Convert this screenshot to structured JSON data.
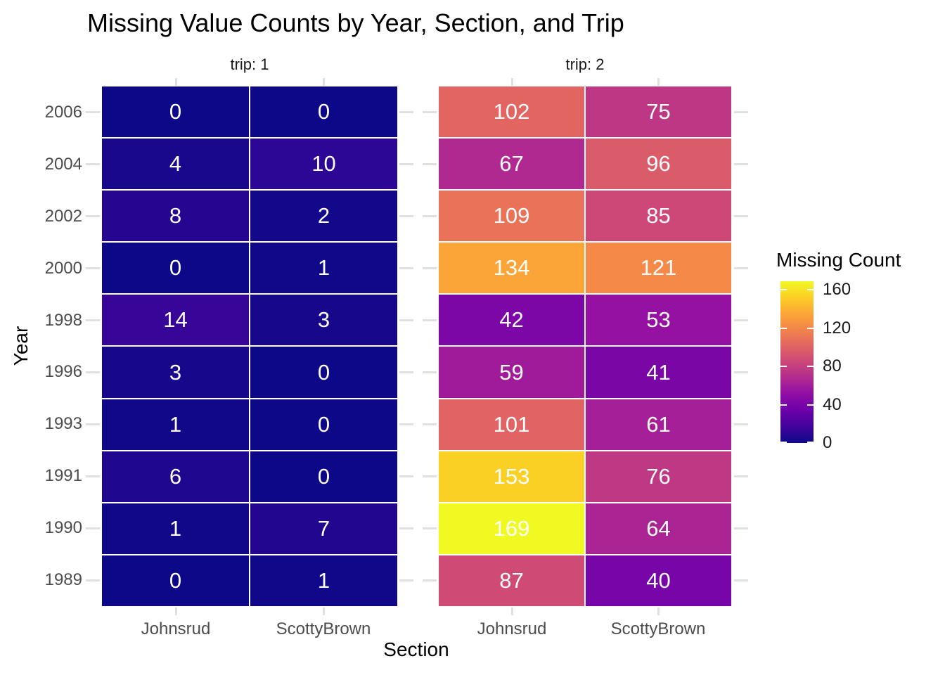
{
  "title": "Missing Value Counts by Year, Section, and Trip",
  "chart_data": {
    "type": "heatmap",
    "title": "Missing Value Counts by Year, Section, and Trip",
    "xlabel": "Section",
    "ylabel": "Year",
    "x_categories": [
      "Johnsrud",
      "ScottyBrown"
    ],
    "y_categories": [
      "2006",
      "2004",
      "2002",
      "2000",
      "1998",
      "1996",
      "1993",
      "1991",
      "1990",
      "1989"
    ],
    "facet_variable": "trip",
    "facets": [
      {
        "label": "trip: 1",
        "values": [
          [
            0,
            0
          ],
          [
            4,
            10
          ],
          [
            8,
            2
          ],
          [
            0,
            1
          ],
          [
            14,
            3
          ],
          [
            3,
            0
          ],
          [
            1,
            0
          ],
          [
            6,
            0
          ],
          [
            1,
            7
          ],
          [
            0,
            1
          ]
        ]
      },
      {
        "label": "trip: 2",
        "values": [
          [
            102,
            75
          ],
          [
            67,
            96
          ],
          [
            109,
            85
          ],
          [
            134,
            121
          ],
          [
            42,
            53
          ],
          [
            59,
            41
          ],
          [
            101,
            61
          ],
          [
            153,
            76
          ],
          [
            169,
            64
          ],
          [
            87,
            40
          ]
        ]
      }
    ],
    "color_scale": {
      "name": "plasma",
      "domain": [
        0,
        169
      ],
      "legend_title": "Missing Count",
      "legend_ticks": [
        160,
        120,
        80,
        40,
        0
      ],
      "min_color": "#0d0887",
      "max_color": "#f0f921"
    },
    "layout_hints": {
      "legend_position": "right",
      "grid": "off",
      "cell_border_color": "#ffffff",
      "tick_color": "#e0e0e0",
      "axis_text_color": "#4d4d4d"
    }
  }
}
